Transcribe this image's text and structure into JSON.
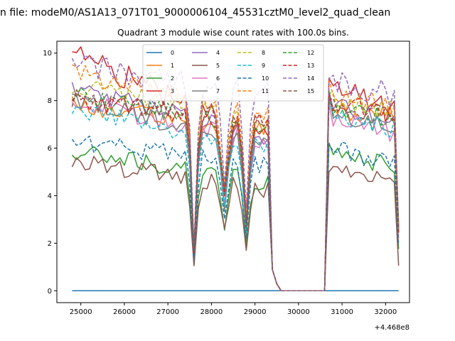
{
  "figure": {
    "suptitle": "n file: modeM0/AS1A13_071T01_9000006104_45531cztM0_level2_quad_clean",
    "title": "Quadrant 3 module wise count rates with 100.0s bins.",
    "x_offset_label": "+4.468e8"
  },
  "chart_data": {
    "type": "line",
    "title": "Quadrant 3 module wise count rates with 100.0s bins.",
    "xlabel": "",
    "ylabel": "",
    "x_offset": "+4.468e8",
    "xlim": [
      24450,
      32550
    ],
    "ylim": [
      -0.5,
      10.5
    ],
    "xticks": [
      25000,
      26000,
      27000,
      28000,
      29000,
      30000,
      31000,
      32000
    ],
    "yticks": [
      0,
      2,
      4,
      6,
      8,
      10
    ],
    "x_range": [
      24800,
      32300
    ],
    "bin_seconds": 100,
    "gap": [
      29600,
      30600
    ],
    "dips": [
      27600,
      28300,
      28800
    ],
    "legend": {
      "position": "upper-center",
      "columns": 4
    },
    "series": [
      {
        "name": "0",
        "color": "#1f77b4",
        "dash": "solid",
        "before_gap": [
          0.0,
          0.0
        ],
        "after_gap": [
          0.0,
          0.0
        ]
      },
      {
        "name": "1",
        "color": "#ff7f0e",
        "dash": "solid",
        "before_gap": [
          7.8,
          6.8
        ],
        "after_gap": [
          7.6,
          7.4
        ]
      },
      {
        "name": "2",
        "color": "#2ca02c",
        "dash": "solid",
        "before_gap": [
          5.9,
          4.5
        ],
        "after_gap": [
          5.8,
          5.2
        ]
      },
      {
        "name": "3",
        "color": "#d62728",
        "dash": "solid",
        "before_gap": [
          10.0,
          6.3
        ],
        "after_gap": [
          8.6,
          7.4
        ]
      },
      {
        "name": "4",
        "color": "#9467bd",
        "dash": "solid",
        "before_gap": [
          8.5,
          6.5
        ],
        "after_gap": [
          7.8,
          7.2
        ]
      },
      {
        "name": "5",
        "color": "#8c564b",
        "dash": "solid",
        "before_gap": [
          5.5,
          4.2
        ],
        "after_gap": [
          5.0,
          4.6
        ]
      },
      {
        "name": "6",
        "color": "#e377c2",
        "dash": "solid",
        "before_gap": [
          8.0,
          6.2
        ],
        "after_gap": [
          7.2,
          6.6
        ]
      },
      {
        "name": "7",
        "color": "#7f7f7f",
        "dash": "solid",
        "before_gap": [
          8.1,
          6.0
        ],
        "after_gap": [
          7.5,
          6.9
        ]
      },
      {
        "name": "8",
        "color": "#bcbd22",
        "dash": "dashed",
        "before_gap": [
          8.7,
          7.2
        ],
        "after_gap": [
          8.0,
          7.6
        ]
      },
      {
        "name": "9",
        "color": "#17becf",
        "dash": "dashed",
        "before_gap": [
          7.6,
          6.1
        ],
        "after_gap": [
          7.3,
          6.8
        ]
      },
      {
        "name": "10",
        "color": "#1f77b4",
        "dash": "dashed",
        "before_gap": [
          6.3,
          5.2
        ],
        "after_gap": [
          6.0,
          5.3
        ]
      },
      {
        "name": "11",
        "color": "#ff7f0e",
        "dash": "dashed",
        "before_gap": [
          9.2,
          7.4
        ],
        "after_gap": [
          8.3,
          7.7
        ]
      },
      {
        "name": "12",
        "color": "#2ca02c",
        "dash": "dashed",
        "before_gap": [
          8.3,
          6.8
        ],
        "after_gap": [
          7.8,
          7.2
        ]
      },
      {
        "name": "13",
        "color": "#d62728",
        "dash": "dashed",
        "before_gap": [
          8.0,
          7.0
        ],
        "after_gap": [
          7.9,
          7.4
        ]
      },
      {
        "name": "14",
        "color": "#9467bd",
        "dash": "dashed",
        "before_gap": [
          9.5,
          8.3
        ],
        "after_gap": [
          8.8,
          8.2
        ]
      },
      {
        "name": "15",
        "color": "#8c564b",
        "dash": "dashed",
        "before_gap": [
          8.1,
          7.2
        ],
        "after_gap": [
          7.9,
          7.3
        ]
      }
    ]
  }
}
